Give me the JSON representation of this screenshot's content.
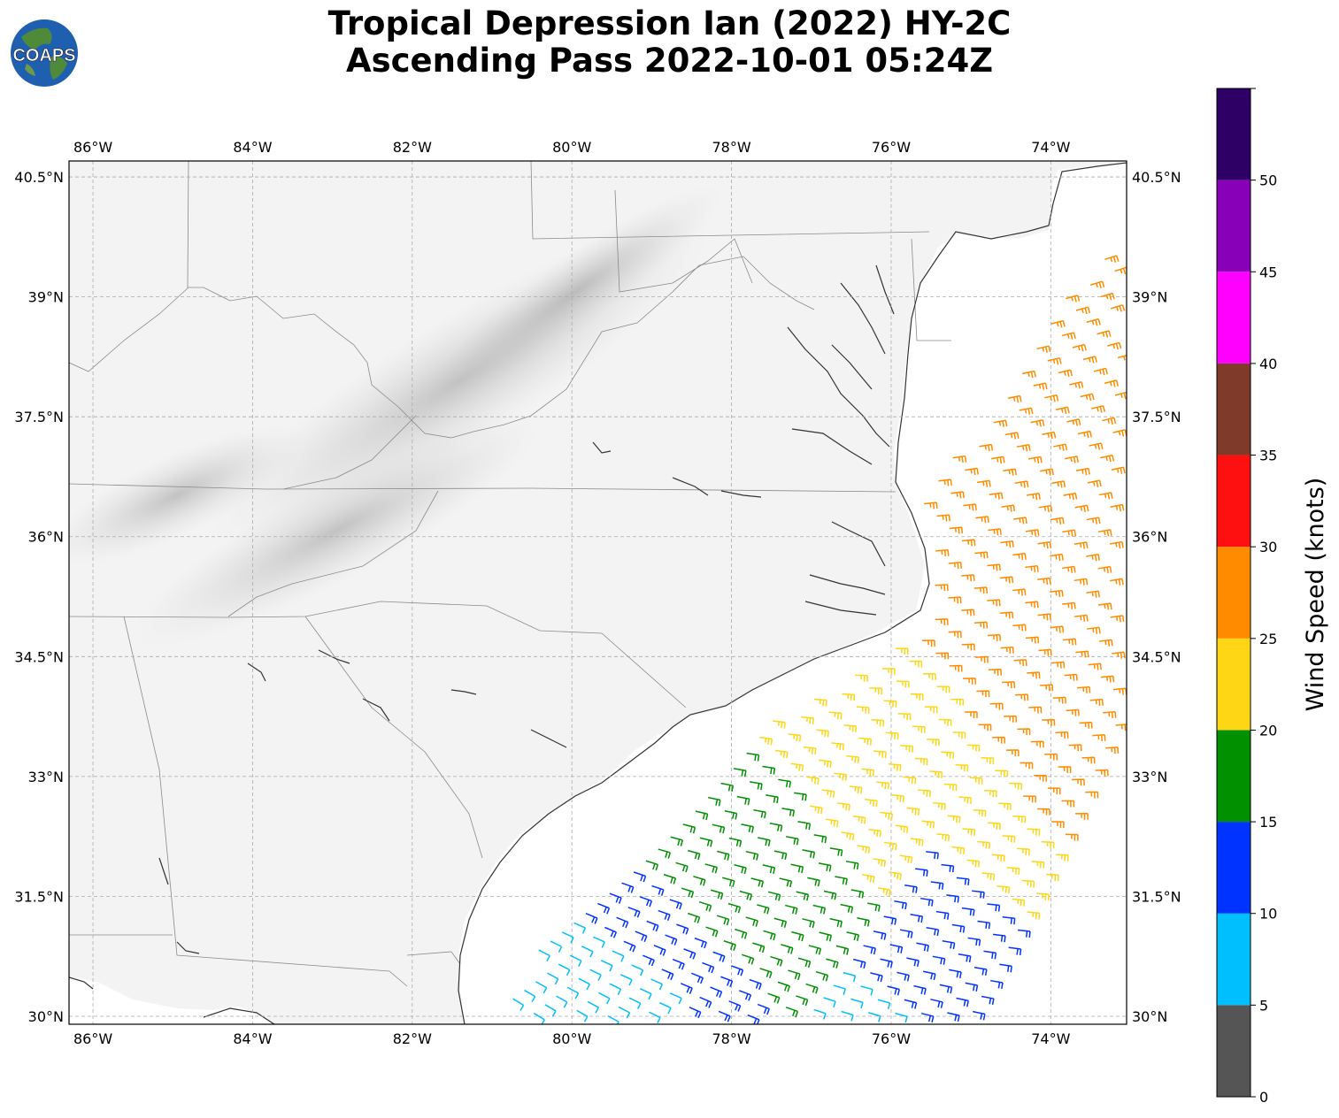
{
  "title": {
    "line1": "Tropical Depression Ian (2022) HY-2C",
    "line2": "Ascending Pass 2022-10-01 05:24Z"
  },
  "logo": {
    "text": "COAPS",
    "icon": "globe-logo-icon"
  },
  "map": {
    "lon_range": [
      -86.3,
      -73.05
    ],
    "lat_range": [
      29.9,
      40.7
    ],
    "lon_ticks": [
      {
        "value": -86,
        "label": "86°W"
      },
      {
        "value": -84,
        "label": "84°W"
      },
      {
        "value": -82,
        "label": "82°W"
      },
      {
        "value": -80,
        "label": "80°W"
      },
      {
        "value": -78,
        "label": "78°W"
      },
      {
        "value": -76,
        "label": "76°W"
      },
      {
        "value": -74,
        "label": "74°W"
      }
    ],
    "lat_ticks": [
      {
        "value": 30,
        "label": "30°N"
      },
      {
        "value": 31.5,
        "label": "31.5°N"
      },
      {
        "value": 33,
        "label": "33°N"
      },
      {
        "value": 34.5,
        "label": "34.5°N"
      },
      {
        "value": 36,
        "label": "36°N"
      },
      {
        "value": 37.5,
        "label": "37.5°N"
      },
      {
        "value": 39,
        "label": "39°N"
      },
      {
        "value": 40.5,
        "label": "40.5°N"
      }
    ],
    "grid": true
  },
  "colorbar": {
    "label": "Wind Speed (knots)",
    "bins": [
      {
        "min": 0,
        "max": 5,
        "color": "#555555"
      },
      {
        "min": 5,
        "max": 10,
        "color": "#00bfff"
      },
      {
        "min": 10,
        "max": 15,
        "color": "#0033ff"
      },
      {
        "min": 15,
        "max": 20,
        "color": "#009000"
      },
      {
        "min": 20,
        "max": 25,
        "color": "#ffd616"
      },
      {
        "min": 25,
        "max": 30,
        "color": "#ff8c00"
      },
      {
        "min": 30,
        "max": 35,
        "color": "#ff1010"
      },
      {
        "min": 35,
        "max": 40,
        "color": "#7f3a2a"
      },
      {
        "min": 40,
        "max": 45,
        "color": "#ff00ff"
      },
      {
        "min": 45,
        "max": 50,
        "color": "#8800b8"
      },
      {
        "min": 50,
        "max": 55,
        "color": "#2e0066"
      }
    ],
    "ticks": [
      "0",
      "5",
      "10",
      "15",
      "20",
      "25",
      "30",
      "35",
      "40",
      "45",
      "50"
    ]
  },
  "wind_swath": {
    "description_color_zones": [
      {
        "zone": "southwest edge",
        "speed_range_kt": [
          5,
          15
        ]
      },
      {
        "zone": "southern band",
        "speed_range_kt": [
          10,
          20
        ]
      },
      {
        "zone": "central band",
        "speed_range_kt": [
          20,
          25
        ]
      },
      {
        "zone": "northern band",
        "speed_range_kt": [
          25,
          30
        ]
      }
    ]
  }
}
